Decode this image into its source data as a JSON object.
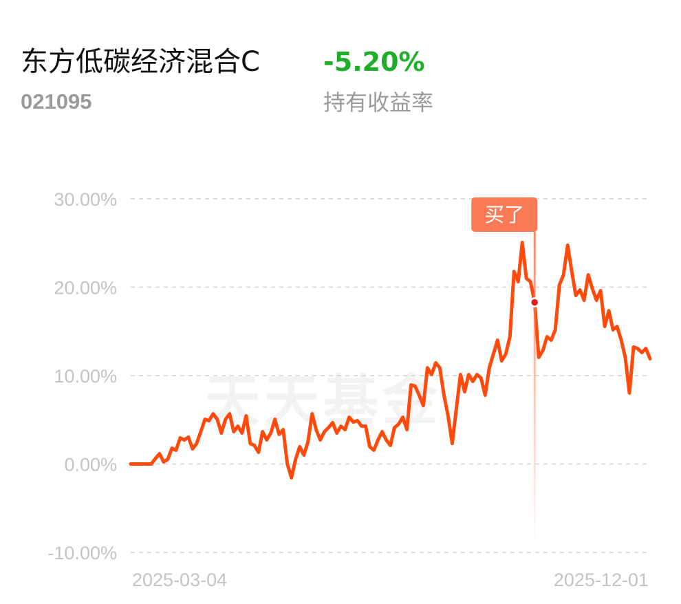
{
  "chart_data": {
    "type": "line",
    "title": "东方低碳经济混合C",
    "code": "021095",
    "return_value": "-5.20%",
    "return_label": "持有收益率",
    "watermark": "天天基金",
    "color": "#ff4a0c",
    "ylim": [
      -10,
      30
    ],
    "yticks": [
      {
        "value": -10,
        "label": "-10.00%"
      },
      {
        "value": 0,
        "label": "0.00%"
      },
      {
        "value": 10,
        "label": "10.00%"
      },
      {
        "value": 20,
        "label": "20.00%"
      },
      {
        "value": 30,
        "label": "30.00%"
      }
    ],
    "grid": true,
    "categories": [
      "2025-03-04",
      null,
      null,
      null,
      null,
      null,
      null,
      null,
      null,
      null,
      null,
      null,
      null,
      null,
      null,
      null,
      null,
      null,
      null,
      null,
      null,
      null,
      null,
      null,
      null,
      null,
      null,
      null,
      null,
      null,
      null,
      null,
      null,
      null,
      null,
      null,
      null,
      null,
      null,
      null,
      null,
      null,
      null,
      null,
      null,
      null,
      null,
      null,
      null,
      null,
      null,
      null,
      null,
      null,
      null,
      null,
      null,
      null,
      null,
      null,
      null,
      null,
      null,
      null,
      null,
      null,
      null,
      null,
      null,
      null,
      null,
      null,
      null,
      null,
      null,
      null,
      null,
      null,
      null,
      null,
      null,
      null,
      null,
      null,
      null,
      null,
      null,
      null,
      null,
      null,
      null,
      null,
      null,
      null,
      null,
      null,
      null,
      null,
      null,
      null,
      null,
      null,
      null,
      null,
      null,
      null,
      null,
      null,
      null,
      null,
      null,
      null,
      null,
      null,
      null,
      null,
      null,
      null,
      null,
      null,
      null,
      null,
      null,
      null,
      null,
      null,
      "2025-12-01"
    ],
    "values": [
      0,
      0,
      0,
      0,
      0,
      0,
      0.62,
      1.17,
      0.23,
      0.54,
      1.79,
      1.56,
      2.96,
      2.72,
      3.04,
      1.71,
      2.33,
      3.66,
      5.06,
      4.9,
      5.68,
      5.06,
      3.5,
      5.06,
      5.68,
      3.66,
      4.28,
      3.5,
      5.45,
      2.33,
      2.1,
      1.32,
      3.66,
      2.72,
      3.5,
      5.06,
      3.35,
      3.89,
      0.0,
      -1.56,
      0.54,
      1.95,
      1.01,
      2.49,
      5.68,
      3.89,
      2.72,
      3.66,
      4.12,
      4.67,
      3.5,
      4.28,
      3.89,
      5.29,
      4.75,
      4.9,
      4.28,
      4.28,
      1.95,
      1.56,
      2.72,
      3.66,
      2.72,
      2.1,
      4.12,
      4.51,
      5.29,
      3.89,
      8.95,
      8.79,
      7.78,
      6.61,
      10.89,
      10.12,
      11.44,
      10.89,
      7.78,
      5.45,
      2.33,
      6.23,
      10.12,
      8.17,
      10.12,
      9.34,
      10.12,
      9.73,
      7.78,
      10.89,
      12.45,
      14.01,
      11.67,
      12.45,
      14.4,
      21.79,
      20.62,
      25.06,
      21.01,
      20.62,
      18.29,
      12.06,
      12.84,
      14.4,
      14.01,
      15.18,
      20.23,
      21.4,
      24.75,
      21.79,
      19.07,
      19.69,
      18.52,
      21.4,
      19.84,
      18.52,
      19.61,
      15.56,
      17.35,
      15.18,
      15.56,
      14.01,
      12.06,
      8.02,
      13.23,
      13.07,
      12.61,
      13.07,
      11.91
    ],
    "annotations": [
      {
        "text": "买了",
        "value": 18.29,
        "color": "#f97a55"
      }
    ]
  }
}
